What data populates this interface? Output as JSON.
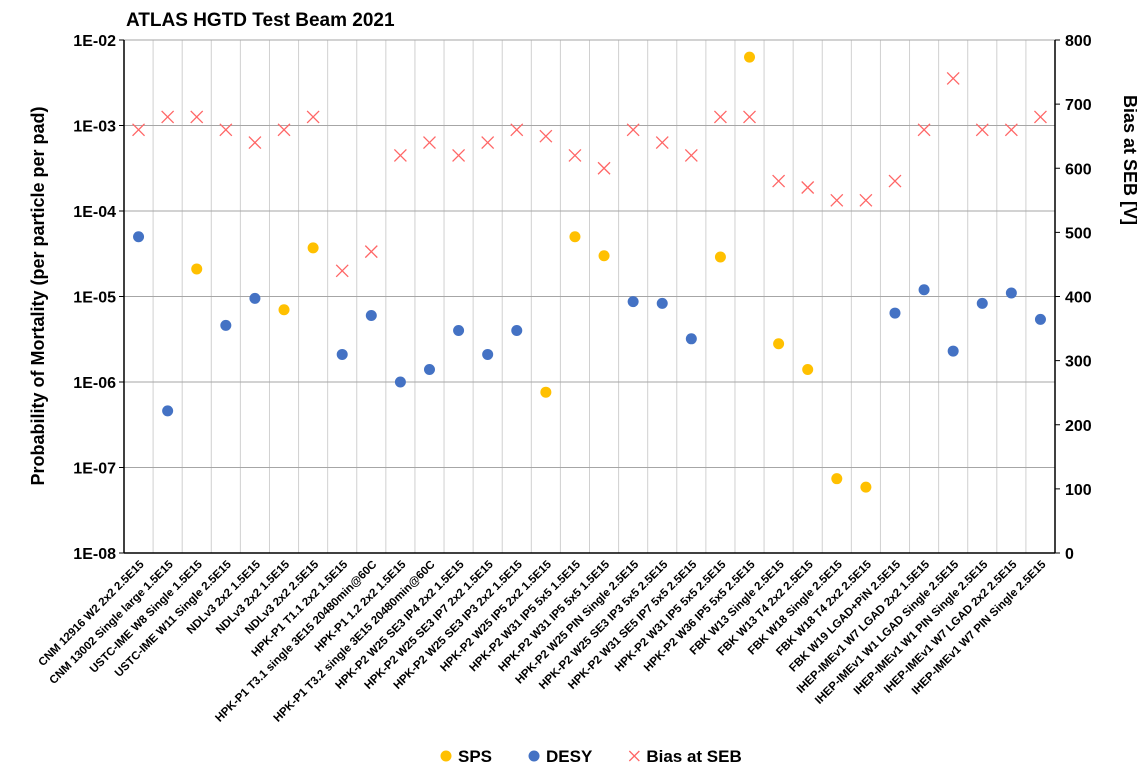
{
  "chart_data": {
    "type": "scatter",
    "title": "ATLAS HGTD Test Beam 2021",
    "y_label": "Probability of Mortality (per particle per pad)",
    "y2_label": "Bias at SEB [V]",
    "log_y": true,
    "grid": true,
    "legend": "bottom",
    "categories": [
      "CNM 12916 W2 2x2 2.5E15",
      "CNM 13002 Single large 1.5E15",
      "USTC-IME W8 Single 1.5E15",
      "USTC-IME W11 Single 2.5E15",
      "NDLv3 2x2 1.5E15",
      "NDLv3 2x2 1.5E15",
      "NDLv3 2x2 2.5E15",
      "HPK-P1 T1.1 2x2 1.5E15",
      "HPK-P1 T3.1 single 3E15 20480min@60C",
      "HPK-P1 1.2 2x2 1.5E15",
      "HPK-P1 T3.2 single 3E15 20480min@60C",
      "HPK-P2 W25 SE3 IP4 2x2 1.5E15",
      "HPK-P2 W25 SE3 IP7 2x2 1.5E15",
      "HPK-P2 W25 SE3 IP3 2x2 1.5E15",
      "HPK-P2 W25 IP5 2x2 1.5E15",
      "HPK-P2 W31 IP5 5x5 1.5E15",
      "HPK-P2 W31 IP5 5x5 1.5E15",
      "HPK-P2 W25 PIN Single 2.5E15",
      "HPK-P2 W25 SE3 IP3 5x5 2.5E15",
      "HPK-P2 W31 SE5 IP7 5x5 2.5E15",
      "HPK-P2 W31 IP5 5x5 2.5E15",
      "HPK-P2 W36 IP5 5x5 2.5E15",
      "FBK W13 Single 2.5E15",
      "FBK W13 T4 2x2 2.5E15",
      "FBK W18 Single 2.5E15",
      "FBK W18 T4 2x2 2.5E15",
      "FBK W19 LGAD+PiN 2.5E15",
      "IHEP-IMEv1 W7 LGAD 2x2 1.5E15",
      "IHEP-IMEv1 W1 LGAD Single 2.5E15",
      "IHEP-IMEv1 W1 PIN Single 2.5E15",
      "IHEP-IMEv1 W7 LGAD 2x2 2.5E15",
      "IHEP-IMEv1 W7 PIN Single 2.5E15"
    ],
    "series": [
      {
        "name": "SPS",
        "color": "#ffc000",
        "marker": "circle",
        "axis": "y",
        "values": [
          null,
          null,
          2.1e-05,
          null,
          null,
          7e-06,
          3.7e-05,
          null,
          null,
          null,
          null,
          null,
          null,
          null,
          7.6e-07,
          5e-05,
          3e-05,
          null,
          null,
          null,
          2.9e-05,
          0.0063,
          2.8e-06,
          1.4e-06,
          7.4e-08,
          5.9e-08,
          null,
          null,
          null,
          null,
          null,
          null
        ]
      },
      {
        "name": "DESY",
        "color": "#4472c4",
        "marker": "circle",
        "axis": "y",
        "values": [
          5e-05,
          4.6e-07,
          null,
          4.6e-06,
          9.5e-06,
          null,
          null,
          2.1e-06,
          6e-06,
          1e-06,
          1.4e-06,
          4e-06,
          2.1e-06,
          4e-06,
          null,
          null,
          null,
          8.7e-06,
          8.3e-06,
          3.2e-06,
          null,
          null,
          null,
          null,
          null,
          null,
          6.4e-06,
          1.2e-05,
          2.3e-06,
          8.3e-06,
          1.1e-05,
          5.4e-06
        ]
      },
      {
        "name": "Bias at SEB",
        "color": "#ff6666",
        "marker": "x",
        "axis": "y2",
        "values": [
          660,
          680,
          680,
          660,
          640,
          660,
          680,
          440,
          470,
          620,
          640,
          620,
          640,
          660,
          650,
          620,
          600,
          660,
          640,
          620,
          680,
          680,
          580,
          570,
          550,
          550,
          580,
          660,
          740,
          660,
          660,
          680
        ]
      }
    ],
    "ylim": [
      1e-08,
      0.01
    ],
    "yticks": [
      {
        "value": 1e-08,
        "label": "1E-08"
      },
      {
        "value": 1e-07,
        "label": "1E-07"
      },
      {
        "value": 1e-06,
        "label": "1E-06"
      },
      {
        "value": 1e-05,
        "label": "1E-05"
      },
      {
        "value": 0.0001,
        "label": "1E-04"
      },
      {
        "value": 0.001,
        "label": "1E-03"
      },
      {
        "value": 0.01,
        "label": "1E-02"
      }
    ],
    "y2lim": [
      0,
      800
    ],
    "y2ticks": [
      0,
      100,
      200,
      300,
      400,
      500,
      600,
      700,
      800
    ]
  }
}
